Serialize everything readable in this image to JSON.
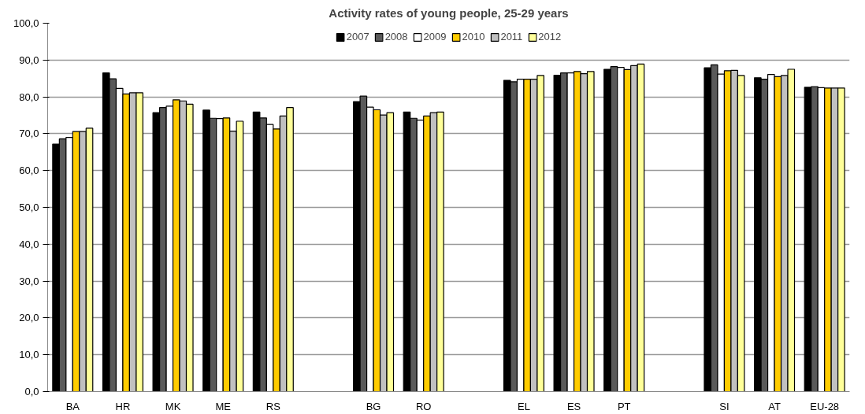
{
  "chart_data": {
    "type": "bar",
    "title": "Activity rates of young people, 25-29 years",
    "categories": [
      "BA",
      "HR",
      "MK",
      "ME",
      "RS",
      null,
      "BG",
      "RO",
      null,
      "EL",
      "ES",
      "PT",
      null,
      "SI",
      "AT",
      "EU-28"
    ],
    "series": [
      {
        "name": "2007",
        "color": "#000000",
        "values": [
          67.2,
          86.5,
          75.7,
          76.4,
          75.9,
          null,
          78.7,
          75.9,
          null,
          84.5,
          85.9,
          87.5,
          null,
          87.9,
          85.2,
          82.6
        ]
      },
      {
        "name": "2008",
        "color": "#5a5a5a",
        "values": [
          68.6,
          84.9,
          77.1,
          74.2,
          74.3,
          null,
          80.2,
          74.2,
          null,
          84.1,
          86.5,
          88.2,
          null,
          88.7,
          84.8,
          82.8
        ]
      },
      {
        "name": "2009",
        "color": "#ffffff",
        "values": [
          69.0,
          82.3,
          77.5,
          74.1,
          72.5,
          null,
          77.2,
          73.7,
          null,
          84.8,
          86.5,
          88.0,
          null,
          86.2,
          86.1,
          82.5
        ]
      },
      {
        "name": "2010",
        "color": "#ffcc00",
        "values": [
          70.6,
          80.8,
          79.2,
          74.3,
          71.3,
          null,
          76.5,
          74.8,
          null,
          84.8,
          86.9,
          87.4,
          null,
          87.1,
          85.5,
          82.4
        ]
      },
      {
        "name": "2011",
        "color": "#c0c0c0",
        "values": [
          70.6,
          81.1,
          78.9,
          70.7,
          74.8,
          null,
          75.1,
          75.7,
          null,
          84.8,
          86.3,
          88.5,
          null,
          87.2,
          85.8,
          82.4
        ]
      },
      {
        "name": "2012",
        "color": "#ffff99",
        "values": [
          71.5,
          81.1,
          78.0,
          73.4,
          77.1,
          null,
          75.7,
          75.9,
          null,
          85.8,
          86.9,
          88.9,
          null,
          85.8,
          87.5,
          82.4
        ]
      }
    ],
    "ylim": [
      0,
      100
    ],
    "yticks": [
      {
        "value": 0,
        "label": "0,0"
      },
      {
        "value": 10,
        "label": "10,0"
      },
      {
        "value": 20,
        "label": "20,0"
      },
      {
        "value": 30,
        "label": "30,0"
      },
      {
        "value": 40,
        "label": "40,0"
      },
      {
        "value": 50,
        "label": "50,0"
      },
      {
        "value": 60,
        "label": "60,0"
      },
      {
        "value": 70,
        "label": "70,0"
      },
      {
        "value": 80,
        "label": "80,0"
      },
      {
        "value": 90,
        "label": "90,0"
      },
      {
        "value": 100,
        "label": "100,0"
      }
    ],
    "grid": "y",
    "legend": "top"
  }
}
